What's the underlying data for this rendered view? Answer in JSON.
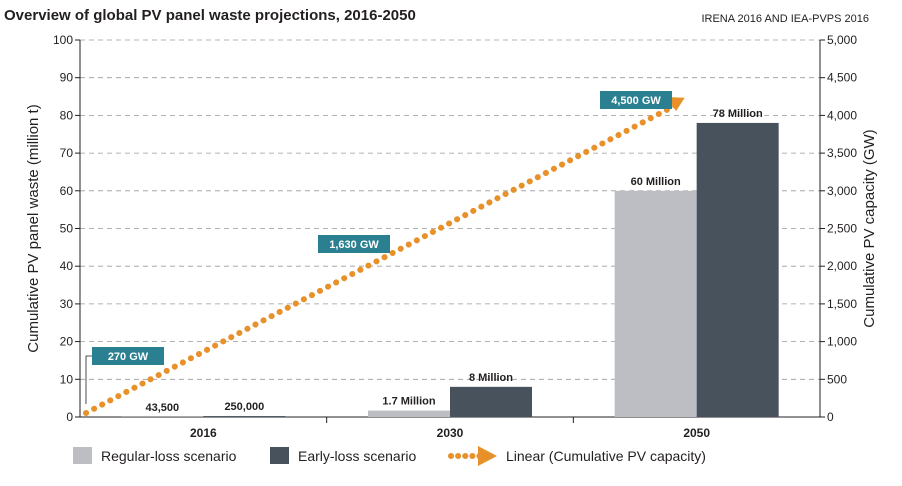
{
  "chart_data": {
    "type": "bar",
    "title": "Overview of global PV panel waste projections, 2016-2050",
    "source": "IRENA 2016 AND IEA-PVPS 2016",
    "categories": [
      "2016",
      "2030",
      "2050"
    ],
    "series": [
      {
        "name": "Regular-loss scenario",
        "values": [
          0.0435,
          1.7,
          60
        ],
        "labels": [
          "43,500",
          "1.7 Million",
          "60 Million"
        ],
        "color": "#bcbec4"
      },
      {
        "name": "Early-loss scenario",
        "values": [
          0.25,
          8,
          78
        ],
        "labels": [
          "250,000",
          "8 Million",
          "78 Million"
        ],
        "color": "#48525c"
      }
    ],
    "line_series": {
      "name": "Linear (Cumulative PV capacity)",
      "color": "#e8912b",
      "callouts": [
        {
          "value": 270,
          "label": "270 GW"
        },
        {
          "value": 1630,
          "label": "1,630 GW"
        },
        {
          "value": 4500,
          "label": "4,500 GW"
        }
      ],
      "callout_color": "#2a7f91"
    },
    "ylabel": "Cumulative PV panel waste (million t)",
    "ylim": [
      0,
      100
    ],
    "yticks": [
      "0",
      "10",
      "20",
      "30",
      "40",
      "50",
      "60",
      "70",
      "80",
      "90",
      "100"
    ],
    "y2label": "Cumulative PV capacity (GW)",
    "y2lim": [
      0,
      5000
    ],
    "y2ticks": [
      "0",
      "500",
      "1,000",
      "1,500",
      "2,000",
      "2,500",
      "3,000",
      "3,500",
      "4,000",
      "4,500",
      "5,000"
    ],
    "grid": true,
    "legend_position": "bottom"
  }
}
